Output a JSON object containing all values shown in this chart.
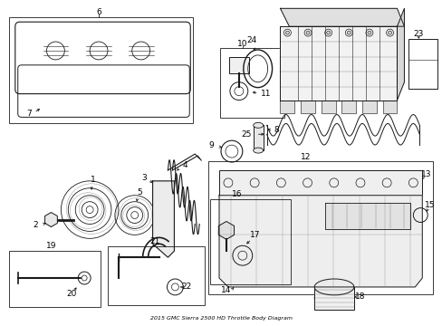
{
  "title": "2015 GMC Sierra 2500 HD Throttle Body Diagram",
  "background_color": "#ffffff",
  "line_color": "#1a1a1a",
  "label_color": "#000000",
  "fig_width": 4.89,
  "fig_height": 3.6,
  "dpi": 100
}
